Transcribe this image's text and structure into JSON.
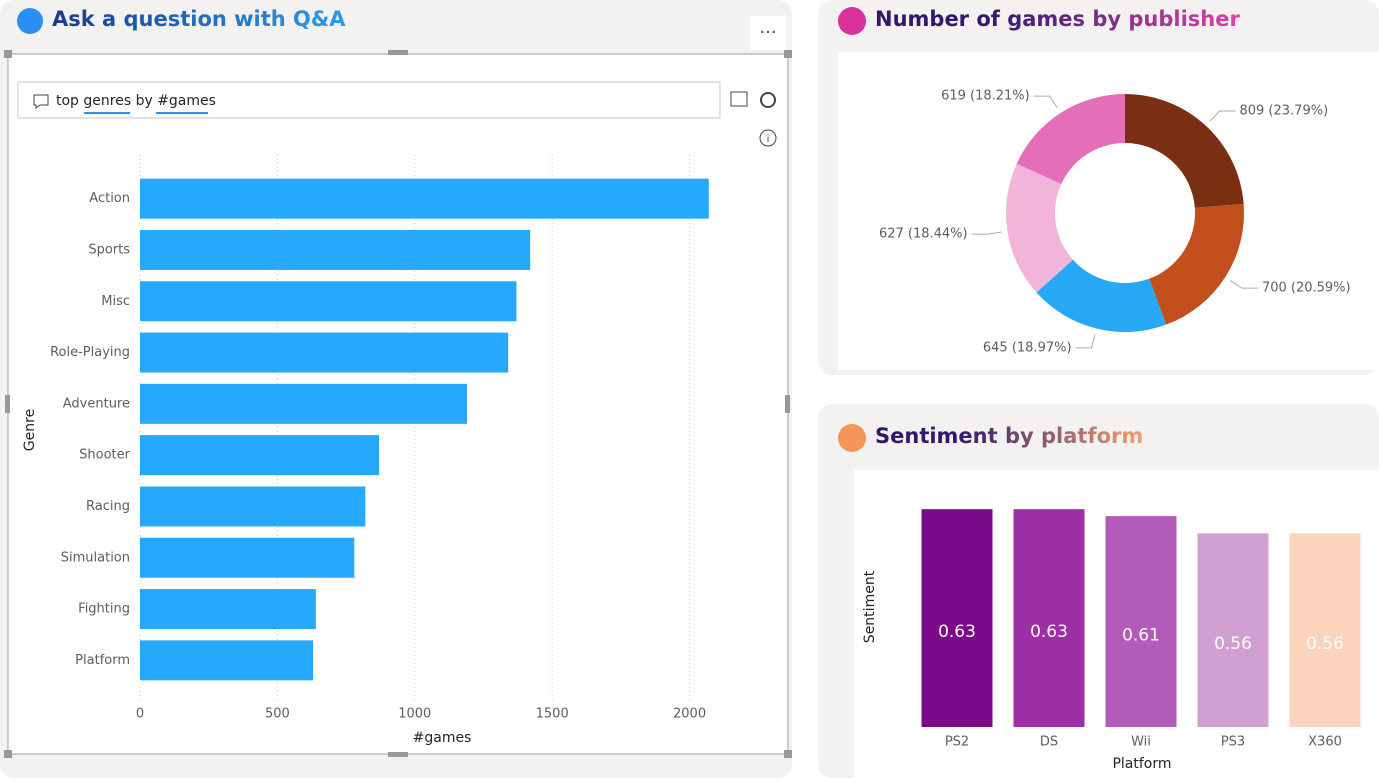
{
  "qna": {
    "title": "Ask a question with Q&A",
    "query": "top genres by #games"
  },
  "chart_data": [
    {
      "type": "bar",
      "orientation": "horizontal",
      "y_label": "Genre",
      "x_label": "#games",
      "categories": [
        "Action",
        "Sports",
        "Misc",
        "Role-Playing",
        "Adventure",
        "Shooter",
        "Racing",
        "Simulation",
        "Fighting",
        "Platform"
      ],
      "values": [
        2070,
        1420,
        1370,
        1340,
        1190,
        870,
        820,
        780,
        640,
        630
      ],
      "color": "#26a8fc",
      "xlim": [
        0,
        2300
      ],
      "xticks": [
        0,
        500,
        1000,
        1500,
        2000
      ],
      "grid": true
    },
    {
      "type": "pie",
      "donut": true,
      "title": "Number of games by publisher",
      "values": [
        809,
        700,
        645,
        627,
        619
      ],
      "value_labels": [
        "809 (23.79%)",
        "700 (20.59%)",
        "645 (18.97%)",
        "627 (18.44%)",
        "619 (18.21%)"
      ],
      "colors": [
        "#7a2e12",
        "#c24f1c",
        "#26a8f5",
        "#f0b5d9",
        "#e46fb8"
      ]
    },
    {
      "type": "bar",
      "orientation": "vertical",
      "title": "Sentiment by platform",
      "y_label": "Sentiment",
      "x_label": "Platform",
      "categories": [
        "PS2",
        "DS",
        "Wii",
        "PS3",
        "X360"
      ],
      "values": [
        0.63,
        0.63,
        0.61,
        0.56,
        0.56
      ],
      "colors": [
        "#7b0a88",
        "#9c2fa5",
        "#b25bb8",
        "#d19fd2",
        "#fcd3bd"
      ],
      "ylim": [
        0,
        0.7
      ],
      "data_labels": true
    }
  ]
}
